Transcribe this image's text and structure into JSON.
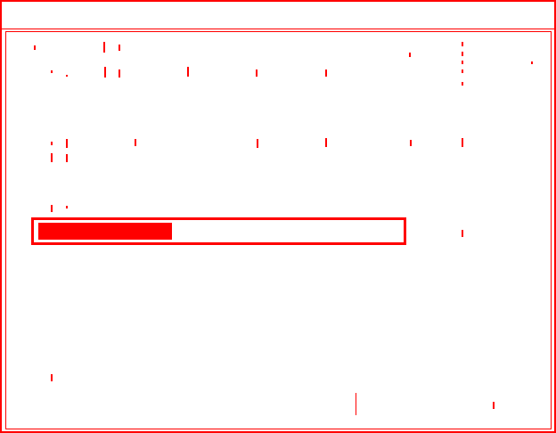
{
  "window": {
    "accent_color": "#ff0000",
    "background_color": "#ffffff"
  },
  "progress": {
    "fraction": 0.37
  }
}
